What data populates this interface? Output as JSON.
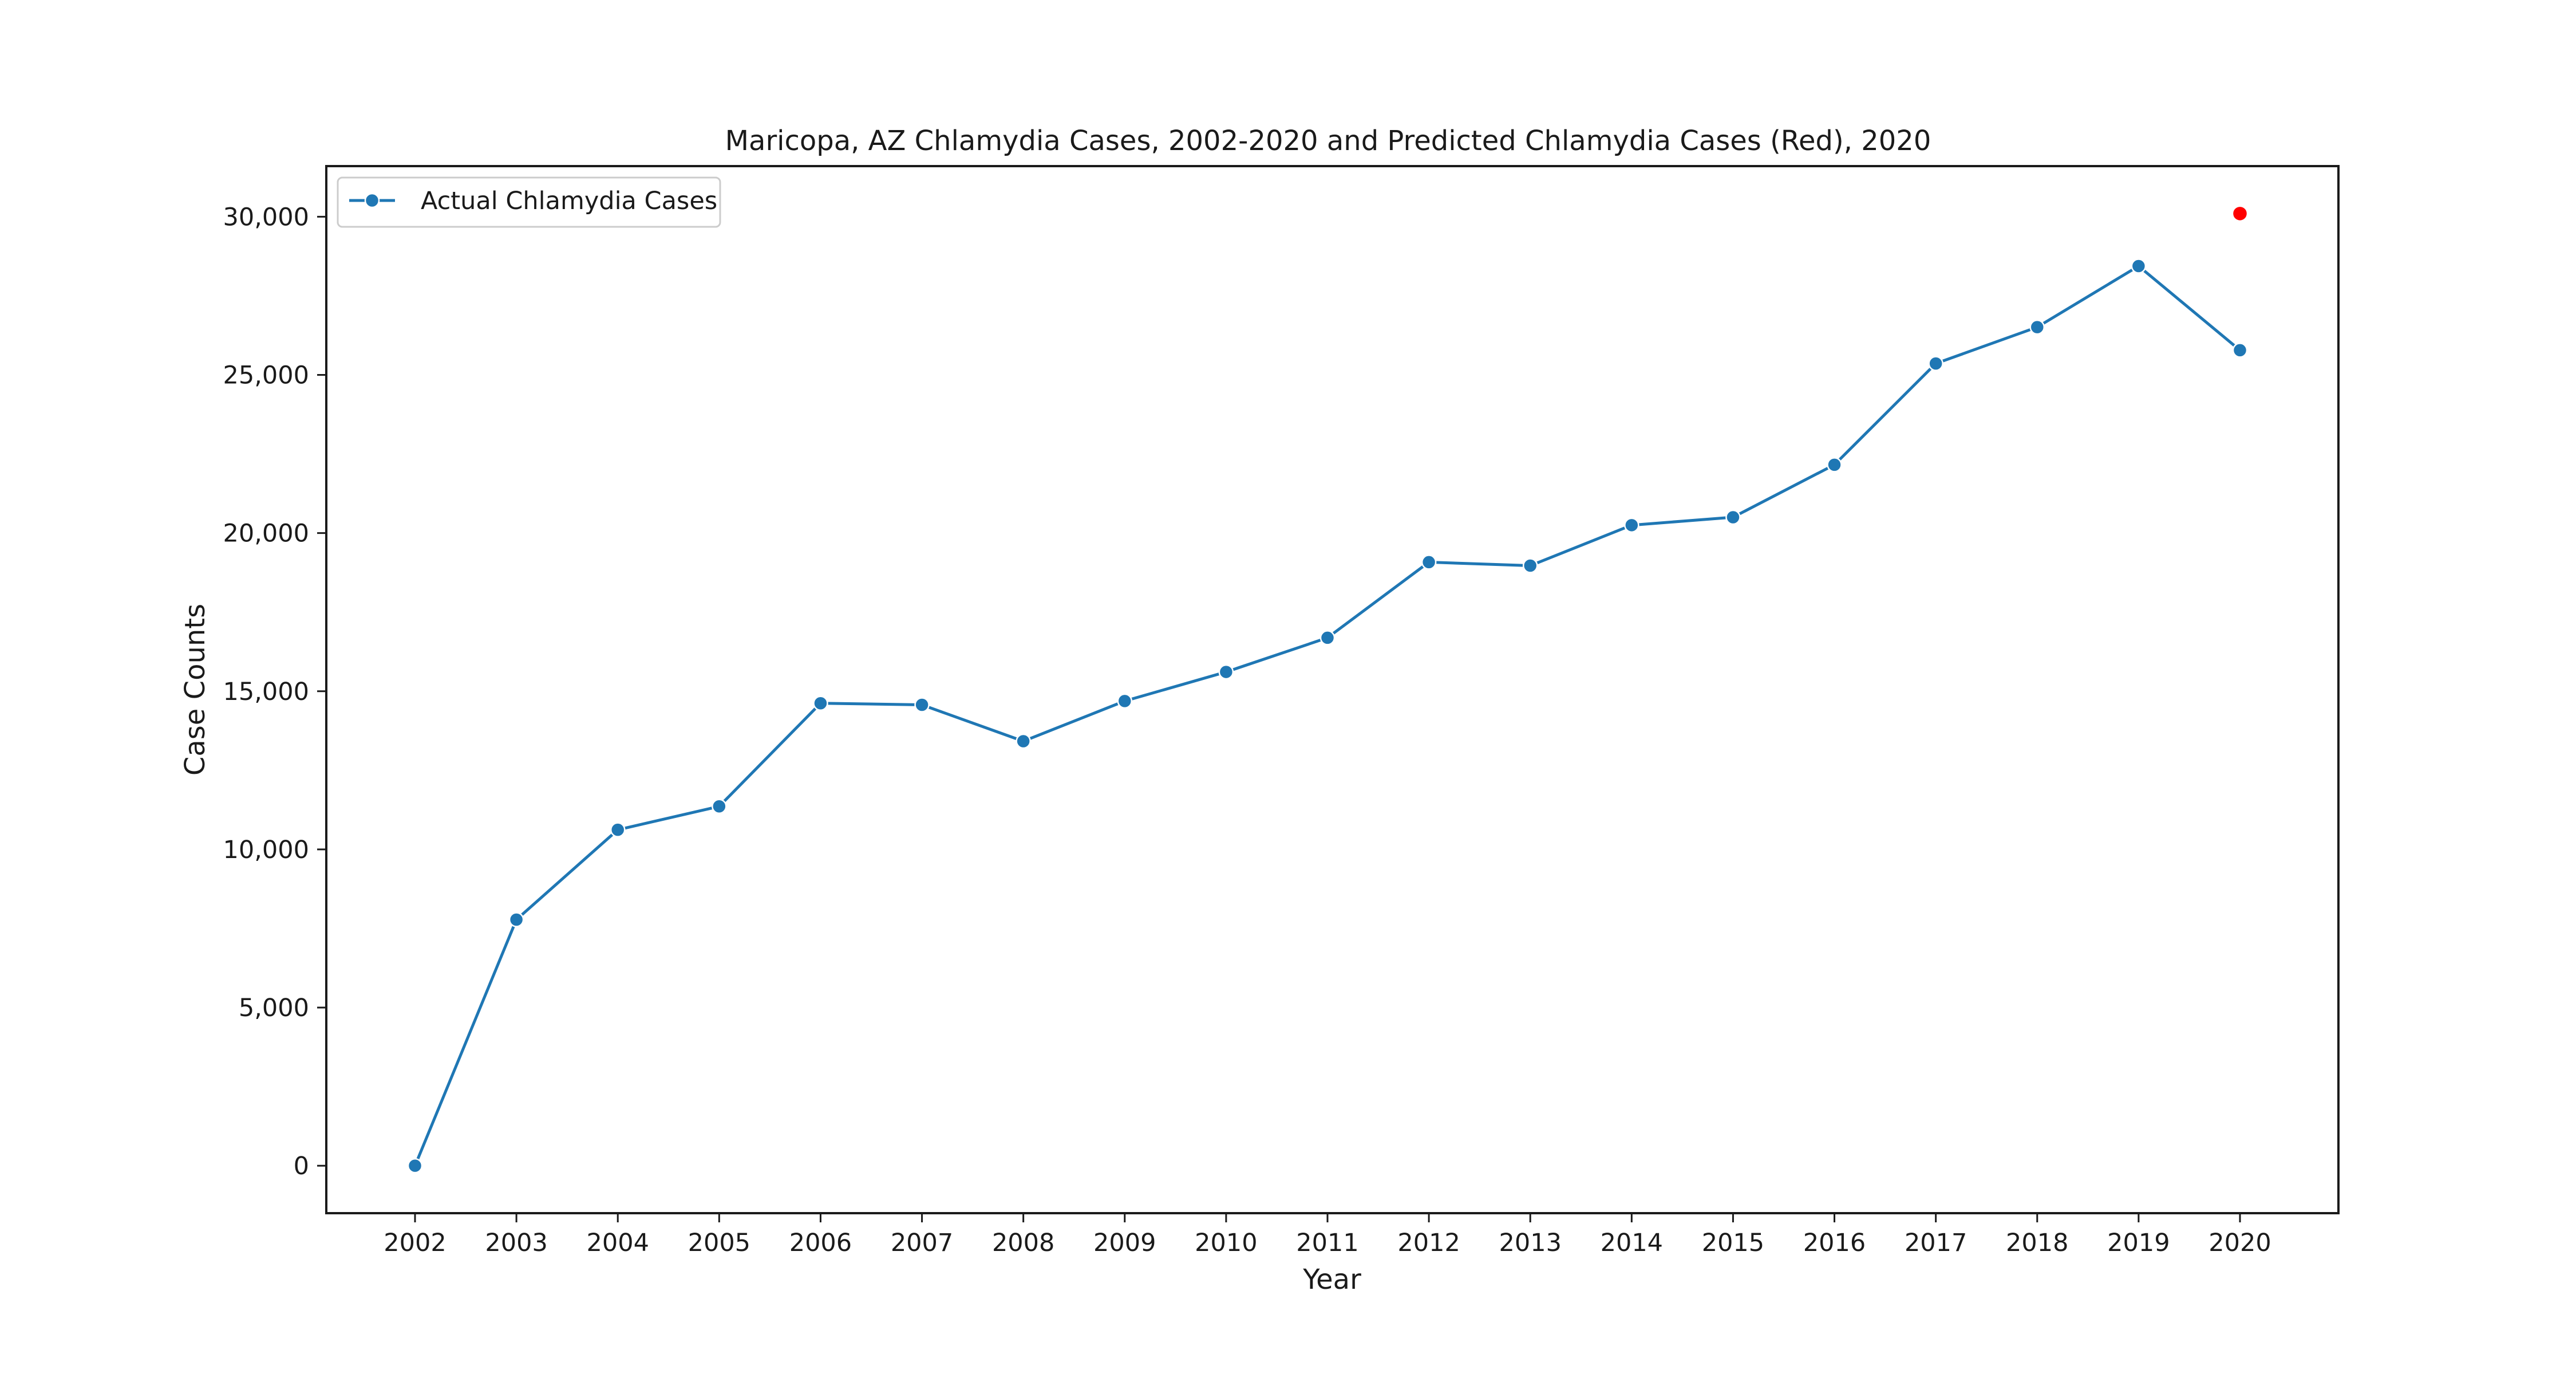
{
  "chart_data": {
    "type": "line",
    "title": "Maricopa, AZ Chlamydia Cases, 2002-2020 and Predicted Chlamydia Cases (Red), 2020",
    "xlabel": "Year",
    "ylabel": "Case Counts",
    "categories": [
      "2002",
      "2003",
      "2004",
      "2005",
      "2006",
      "2007",
      "2008",
      "2009",
      "2010",
      "2011",
      "2012",
      "2013",
      "2014",
      "2015",
      "2016",
      "2017",
      "2018",
      "2019",
      "2020"
    ],
    "series": [
      {
        "name": "Actual Chlamydia Cases",
        "color": "#1f77b4",
        "values": [
          0,
          7780,
          10620,
          11360,
          14620,
          14570,
          13420,
          14690,
          15610,
          16690,
          19080,
          18970,
          20250,
          20500,
          22160,
          25360,
          26510,
          28440,
          25780
        ]
      },
      {
        "name": "",
        "color": "#ff0000",
        "points": [
          {
            "x": "2020",
            "y": 30100
          }
        ]
      }
    ],
    "ylim": [
      -1500,
      31600
    ],
    "yticks": [
      0,
      5000,
      10000,
      15000,
      20000,
      25000,
      30000
    ],
    "ytick_labels": [
      "0",
      "5,000",
      "10,000",
      "15,000",
      "20,000",
      "25,000",
      "30,000"
    ],
    "legend_position": "upper-left",
    "grid": false
  }
}
